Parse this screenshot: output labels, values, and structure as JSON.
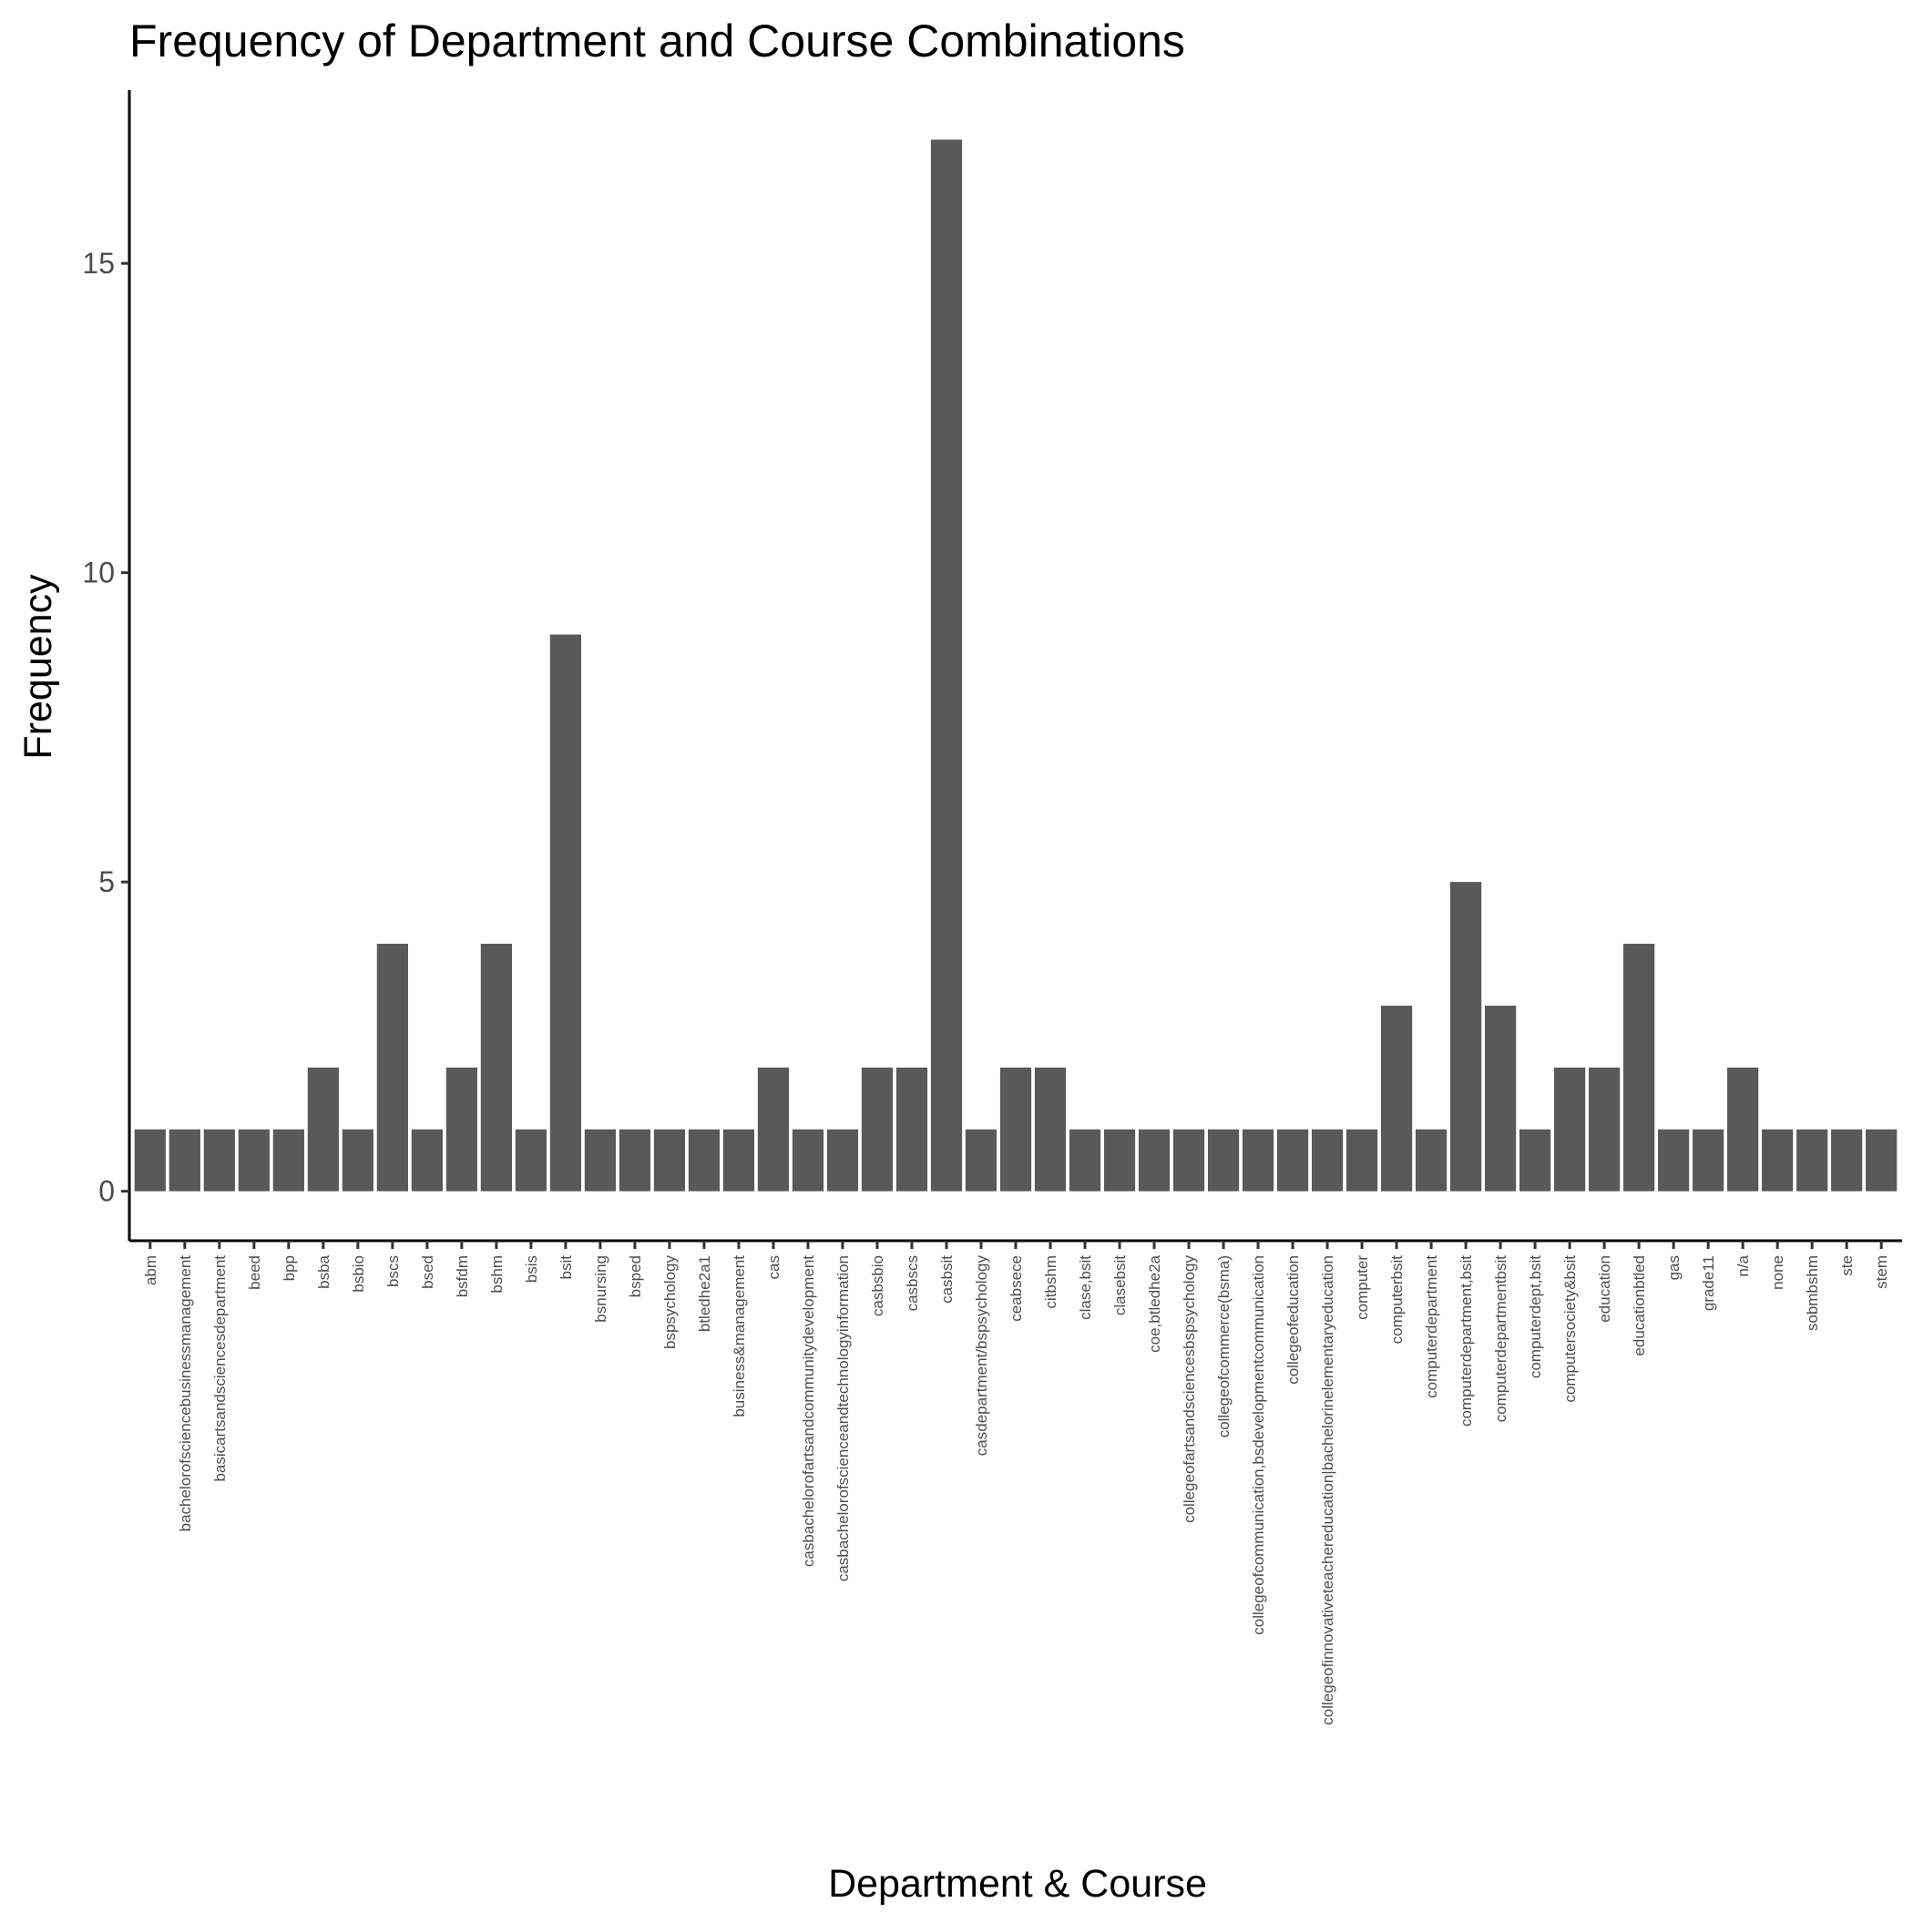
{
  "chart_data": {
    "type": "bar",
    "title": "Frequency of Department and Course Combinations",
    "xlabel": "Department & Course",
    "ylabel": "Frequency",
    "ylim": [
      -0.8,
      17.8
    ],
    "yticks": [
      0,
      5,
      10,
      15
    ],
    "grid": false,
    "legend": "none",
    "bar_color": "#595959",
    "categories": [
      "abm",
      "bachelorofsciencebusinessmanagement",
      "basicartsandsciencesdepartment",
      "beed",
      "bpp",
      "bsba",
      "bsbio",
      "bscs",
      "bsed",
      "bsfdm",
      "bshm",
      "bsis",
      "bsit",
      "bsnursing",
      "bsped",
      "bspsychology",
      "btledhe2a1",
      "business&management",
      "cas",
      "casbachelorofartsandcommunitydevelopment",
      "casbachelorofscienceandtechnologyinformation",
      "casbsbio",
      "casbscs",
      "casbsit",
      "casdepartment/bspsychology",
      "ceabsece",
      "citbshm",
      "clase,bsit",
      "clasebsit",
      "coe,btledhe2a",
      "collegeofartsandsciencesbspsychology",
      "collegeofcommerce(bsma)",
      "collegeofcommunication,bsdevelopmentcommunication",
      "collegeofeducation",
      "collegeofinnovativeteachereducation|bachelorinelementaryeducation",
      "computer",
      "computerbsit",
      "computerdepartment",
      "computerdepartment,bsit",
      "computerdepartmentbsit",
      "computerdept,bsit",
      "computersociety&bsit",
      "education",
      "educationbtled",
      "gas",
      "grade11",
      "n/a",
      "none",
      "sobmbshm",
      "ste",
      "stem"
    ],
    "values": [
      1,
      1,
      1,
      1,
      1,
      2,
      1,
      4,
      1,
      2,
      4,
      1,
      9,
      1,
      1,
      1,
      1,
      1,
      2,
      1,
      1,
      2,
      2,
      17,
      1,
      2,
      2,
      1,
      1,
      1,
      1,
      1,
      1,
      1,
      1,
      1,
      3,
      1,
      5,
      3,
      1,
      2,
      2,
      4,
      1,
      1,
      2,
      1,
      1,
      1,
      1
    ]
  }
}
